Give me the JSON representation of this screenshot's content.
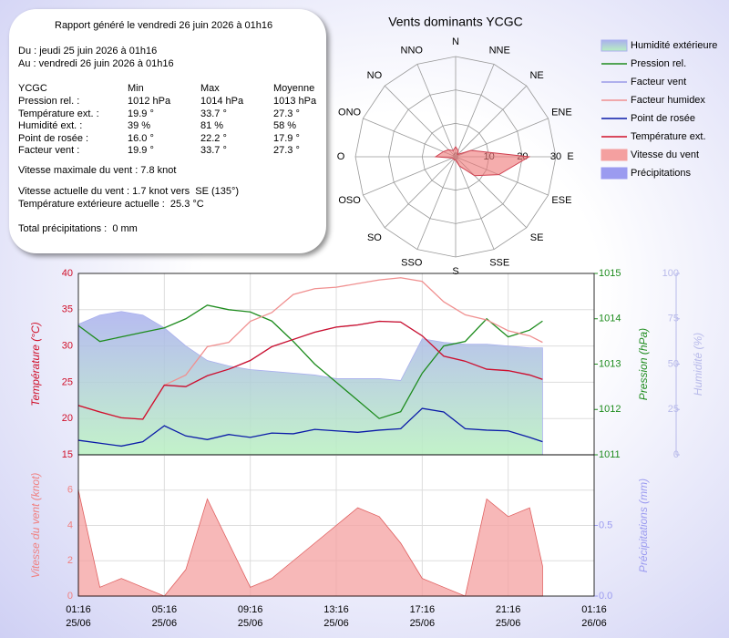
{
  "report": {
    "title": "Rapport généré le vendredi 26 juin 2026 à 01h16",
    "from": "Du : jeudi 25 juin 2026 à 01h16",
    "to": "Au : vendredi 26 juin 2026 à 01h16",
    "table": {
      "header": [
        "YCGC",
        "Min",
        "Max",
        "Moyenne"
      ],
      "rows": [
        [
          "Pression rel. :",
          "1012 hPa",
          "1014 hPa",
          "1013 hPa"
        ],
        [
          "Température ext. :",
          "19.9 °",
          "33.7 °",
          "27.3 °"
        ],
        [
          "Humidité ext. :",
          "39 %",
          "81 %",
          "58 %"
        ],
        [
          "Point de rosée :",
          "16.0 °",
          "22.2 °",
          "17.9 °"
        ],
        [
          "Facteur vent :",
          "19.9 °",
          "33.7 °",
          "27.3 °"
        ]
      ]
    },
    "max_wind": "Vitesse maximale du vent : 7.8 knot",
    "current_wind": "Vitesse actuelle du vent : 1.7 knot vers  SE (135°)",
    "current_temp": "Température extérieure actuelle :  25.3 °C",
    "precip": "Total précipitations :  0 mm"
  },
  "chart_data": [
    {
      "type": "polar",
      "title": "Vents dominants YCGC",
      "categories": [
        "N",
        "NNE",
        "NE",
        "ENE",
        "E",
        "ESE",
        "SE",
        "SSE",
        "S",
        "SSO",
        "SO",
        "OSO",
        "O",
        "ONO",
        "NO",
        "NNO"
      ],
      "values": [
        3,
        2,
        1,
        5,
        22,
        14,
        8,
        3,
        1,
        1,
        1,
        1,
        6,
        4,
        3,
        2
      ],
      "color": "#ee7777",
      "rlim": [
        0,
        30
      ],
      "rticks": [
        0,
        10,
        20,
        30
      ]
    },
    {
      "type": "line",
      "x": [
        "25/06 01:16",
        "25/06 02:16",
        "25/06 03:16",
        "25/06 04:16",
        "25/06 05:16",
        "25/06 06:16",
        "25/06 07:16",
        "25/06 08:16",
        "25/06 09:16",
        "25/06 10:16",
        "25/06 11:16",
        "25/06 12:16",
        "25/06 13:16",
        "25/06 14:16",
        "25/06 15:16",
        "25/06 16:16",
        "25/06 17:16",
        "25/06 18:16",
        "25/06 19:16",
        "25/06 20:16",
        "25/06 21:16",
        "25/06 22:16",
        "25/06 22:52"
      ],
      "xlim": [
        "25/06 01:16",
        "26/06 01:16"
      ],
      "ylabel": "Température (°C)",
      "ylim": [
        15,
        40
      ],
      "yticks": [
        15,
        20,
        25,
        30,
        35,
        40
      ],
      "y2label": "Pression (hPa)",
      "y2lim": [
        1011,
        1015
      ],
      "y2ticks": [
        1011,
        1012,
        1013,
        1014,
        1015
      ],
      "y3label": "Humidité (%)",
      "y3lim": [
        0,
        100
      ],
      "y3ticks": [
        0,
        25,
        50,
        75,
        100
      ],
      "grid": true,
      "series": [
        {
          "name": "Humidité extérieure",
          "kind": "area",
          "axis": "y3",
          "color": "#aab0ee",
          "values": [
            72,
            77,
            79,
            77,
            70,
            60,
            52,
            49,
            47,
            46,
            45,
            44,
            42,
            42,
            42,
            41,
            64,
            62,
            61,
            61,
            60,
            59,
            59
          ]
        },
        {
          "name": "Pression rel.",
          "kind": "line",
          "axis": "y2",
          "color": "#1e8c1e",
          "values": [
            1013.85,
            1013.5,
            1013.6,
            1013.7,
            1013.8,
            1014.0,
            1014.3,
            1014.2,
            1014.15,
            1013.95,
            1013.5,
            1013.0,
            1012.6,
            1012.2,
            1011.8,
            1011.95,
            1012.8,
            1013.4,
            1013.5,
            1014.0,
            1013.6,
            1013.75,
            1013.95
          ]
        },
        {
          "name": "Facteur vent",
          "kind": "line",
          "axis": "y",
          "color": "#9a9ae8",
          "values": [
            21.8,
            20.9,
            20.1,
            19.9,
            24.6,
            24.4,
            25.9,
            26.8,
            28,
            29.9,
            30.9,
            31.9,
            32.6,
            32.9,
            33.4,
            33.3,
            31.4,
            28.6,
            27.9,
            26.8,
            26.6,
            26,
            25.4
          ]
        },
        {
          "name": "Facteur humidex",
          "kind": "line",
          "axis": "y",
          "color": "#f09090",
          "values": [
            21.8,
            20.9,
            20.1,
            19.9,
            24.6,
            26,
            29.9,
            30.5,
            33.4,
            34.6,
            37.1,
            37.9,
            38.1,
            38.6,
            39.1,
            39.4,
            38.9,
            36.1,
            34.3,
            33.6,
            32.1,
            31.4,
            30.5
          ]
        },
        {
          "name": "Point de rosée",
          "kind": "line",
          "axis": "y",
          "color": "#0a1aa8",
          "values": [
            17,
            16.6,
            16.2,
            16.8,
            19,
            17.6,
            17.1,
            17.8,
            17.4,
            18,
            17.9,
            18.5,
            18.3,
            18.1,
            18.4,
            18.6,
            21.4,
            20.9,
            18.6,
            18.4,
            18.3,
            17.4,
            16.8
          ]
        },
        {
          "name": "Température ext.",
          "kind": "line",
          "axis": "y",
          "color": "#d0102a",
          "values": [
            21.8,
            20.9,
            20.1,
            19.9,
            24.6,
            24.4,
            25.9,
            26.8,
            28,
            29.9,
            30.9,
            31.9,
            32.6,
            32.9,
            33.4,
            33.3,
            31.4,
            28.6,
            27.9,
            26.8,
            26.6,
            26,
            25.4
          ]
        }
      ]
    },
    {
      "type": "area",
      "x": [
        "25/06 01:16",
        "25/06 02:16",
        "25/06 03:16",
        "25/06 04:16",
        "25/06 05:16",
        "25/06 06:16",
        "25/06 07:16",
        "25/06 08:16",
        "25/06 09:16",
        "25/06 10:16",
        "25/06 11:16",
        "25/06 12:16",
        "25/06 13:16",
        "25/06 14:16",
        "25/06 15:16",
        "25/06 16:16",
        "25/06 17:16",
        "25/06 18:16",
        "25/06 19:16",
        "25/06 20:16",
        "25/06 21:16",
        "25/06 22:16",
        "25/06 22:52"
      ],
      "xlim": [
        "25/06 01:16",
        "26/06 01:16"
      ],
      "xticks": [
        {
          "value": "25/06 01:16",
          "label": "01:16\n25/06"
        },
        {
          "value": "25/06 05:16",
          "label": "05:16\n25/06"
        },
        {
          "value": "25/06 09:16",
          "label": "09:16\n25/06"
        },
        {
          "value": "25/06 13:16",
          "label": "13:16\n25/06"
        },
        {
          "value": "25/06 17:16",
          "label": "17:16\n25/06"
        },
        {
          "value": "25/06 21:16",
          "label": "21:16\n25/06"
        },
        {
          "value": "26/06 01:16",
          "label": "01:16\n26/06"
        }
      ],
      "ylabel": "Vitesse du vent (knot)",
      "ylim": [
        0,
        8
      ],
      "yticks": [
        0,
        2,
        4,
        6
      ],
      "y2label": "Précipitations (mm)",
      "y2lim": [
        0,
        1
      ],
      "y2ticks": [
        {
          "value": 0,
          "label": "0.0"
        },
        {
          "value": 0.5,
          "label": "0.5"
        }
      ],
      "grid": true,
      "series": [
        {
          "name": "Vitesse du vent",
          "kind": "area",
          "axis": "y",
          "color": "#f4a0a0",
          "values": [
            6,
            0.5,
            1,
            0.5,
            0,
            1.5,
            5.5,
            3,
            0.5,
            1,
            2,
            3,
            4,
            5,
            4.5,
            3,
            1,
            0.5,
            0,
            5.5,
            4.5,
            5,
            1.7
          ]
        },
        {
          "name": "Précipitations",
          "kind": "area",
          "axis": "y2",
          "color": "#9b9bf0",
          "values": [
            0,
            0,
            0,
            0,
            0,
            0,
            0,
            0,
            0,
            0,
            0,
            0,
            0,
            0,
            0,
            0,
            0,
            0,
            0,
            0,
            0,
            0,
            0
          ]
        }
      ]
    }
  ]
}
